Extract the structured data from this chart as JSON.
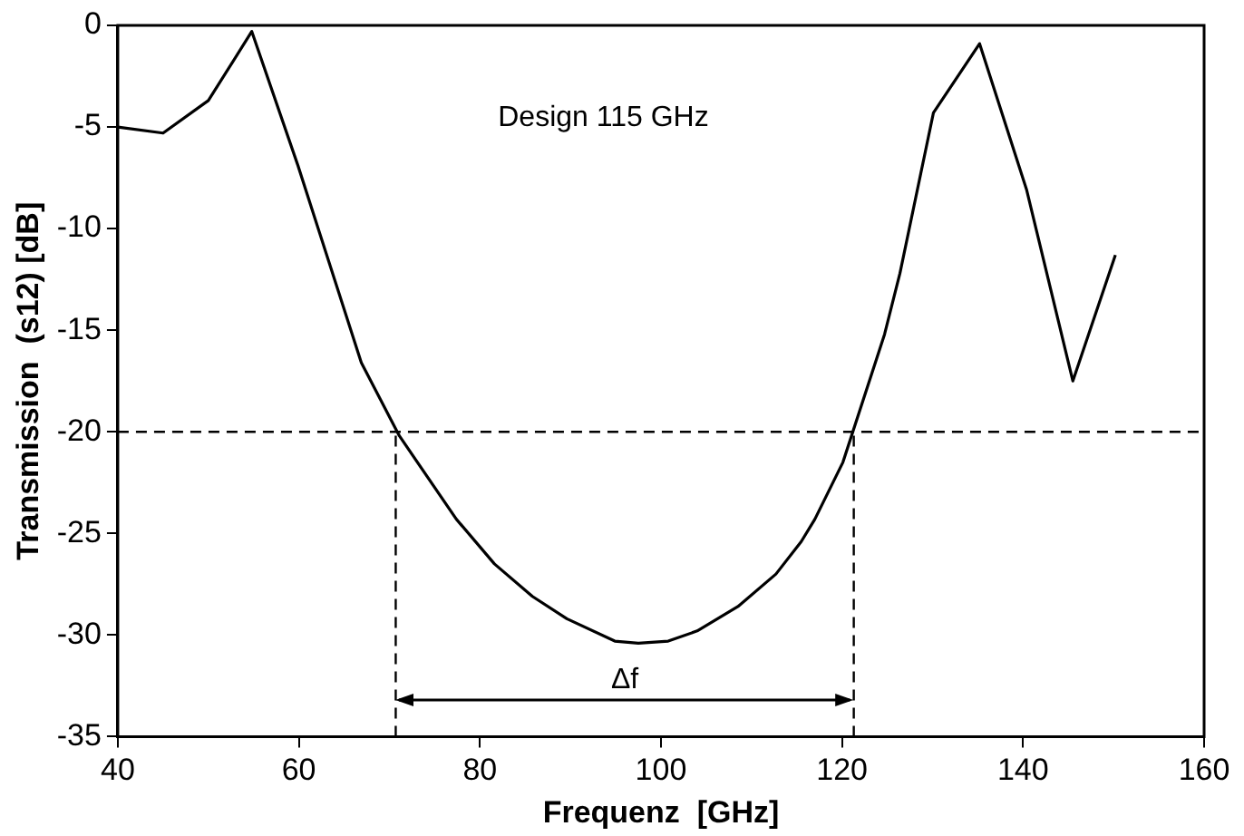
{
  "chart_data": {
    "type": "line",
    "xlabel": "Frequenz  [GHz]",
    "ylabel": "Transmission  (s12) [dB]",
    "x": [
      40,
      45,
      50,
      54.8,
      59.9,
      66.9,
      71.1,
      77.4,
      81.6,
      85.8,
      89.6,
      94.9,
      97.5,
      100.8,
      104,
      108.5,
      112.7,
      115.5,
      117,
      120.1,
      124.7,
      126.4,
      130.1,
      135.2,
      140.4,
      145.5,
      150.2
    ],
    "series": [
      {
        "color": "#000000",
        "values": [
          -5,
          -5.3,
          -3.7,
          -0.3,
          -6.9,
          -16.6,
          -20.2,
          -24.3,
          -26.5,
          -28.1,
          -29.2,
          -30.3,
          -30.4,
          -30.3,
          -29.8,
          -28.6,
          -27,
          -25.4,
          -24.3,
          -21.5,
          -15.2,
          -12.2,
          -4.3,
          -0.9,
          -8.1,
          -17.5,
          -11.3
        ]
      }
    ],
    "xlim": [
      40,
      160
    ],
    "xticks": [
      40,
      60,
      80,
      100,
      120,
      140,
      160
    ],
    "ylim": [
      -35,
      0
    ],
    "yticks": [
      -35,
      -30,
      -25,
      -20,
      -15,
      -10,
      -5,
      0
    ],
    "ref_lines": [
      {
        "axis": "y",
        "value": -20,
        "line_style": "dashed"
      },
      {
        "axis": "x",
        "value": 70.7,
        "line_style": "dashed"
      },
      {
        "axis": "x",
        "value": 121.3,
        "line_style": "dashed"
      }
    ],
    "annotations": [
      "Design 115 GHz",
      "Δf"
    ],
    "grid": false,
    "legend": false,
    "marker": "none",
    "line_style": "solid"
  }
}
